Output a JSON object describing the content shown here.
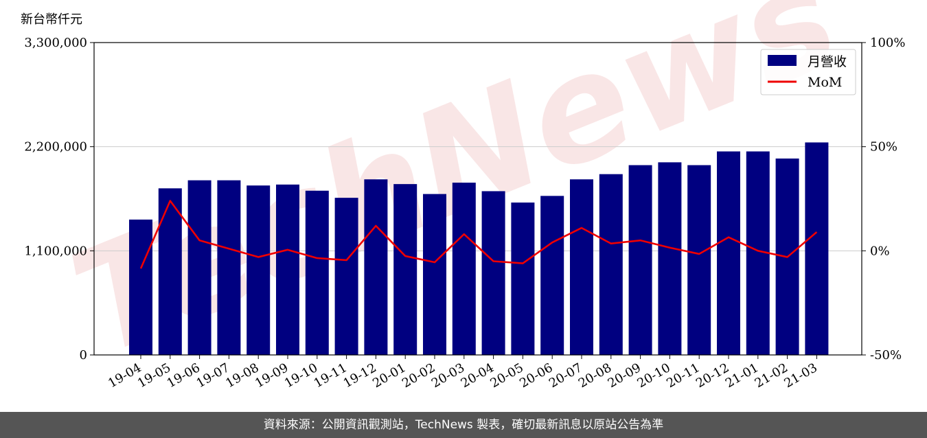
{
  "y_unit_label": "新台幣仟元",
  "watermark": "TechNews",
  "footer": "資料來源：公開資訊觀測站，TechNews 製表，確切最新訊息以原站公告為準",
  "chart_data": {
    "type": "bar",
    "categories": [
      "19-04",
      "19-05",
      "19-06",
      "19-07",
      "19-08",
      "19-09",
      "19-10",
      "19-11",
      "19-12",
      "20-01",
      "20-02",
      "20-03",
      "20-04",
      "20-05",
      "20-06",
      "20-07",
      "20-08",
      "20-09",
      "20-10",
      "20-11",
      "20-12",
      "21-01",
      "21-02",
      "21-03"
    ],
    "series": [
      {
        "name": "月營收",
        "type": "bar",
        "axis": "left",
        "color": "#000080",
        "values": [
          1430000,
          1760000,
          1845000,
          1845000,
          1790000,
          1800000,
          1735000,
          1660000,
          1855000,
          1805000,
          1700000,
          1820000,
          1730000,
          1610000,
          1680000,
          1855000,
          1910000,
          2005000,
          2035000,
          2005000,
          2150000,
          2150000,
          2075000,
          2245000
        ]
      },
      {
        "name": "MoM",
        "type": "line",
        "axis": "right",
        "color": "#ee0000",
        "values": [
          -8.5,
          24,
          5,
          1,
          -3,
          0.5,
          -3.5,
          -4.5,
          12,
          -2.5,
          -5.5,
          8,
          -5,
          -6,
          4,
          11,
          3.5,
          5,
          1.5,
          -1.5,
          6.5,
          0,
          -3,
          9
        ]
      }
    ],
    "y_left": {
      "ylim": [
        0,
        3300000
      ],
      "ticks": [
        "0",
        "1,100,000",
        "2,200,000",
        "3,300,000"
      ],
      "tick_values": [
        0,
        1100000,
        2200000,
        3300000
      ]
    },
    "y_right": {
      "ylim": [
        -50,
        100
      ],
      "ticks": [
        "-50%",
        "0%",
        "50%",
        "100%"
      ],
      "tick_values": [
        -50,
        0,
        50,
        100
      ]
    },
    "grid": "horizontal",
    "legend": "top-right"
  }
}
